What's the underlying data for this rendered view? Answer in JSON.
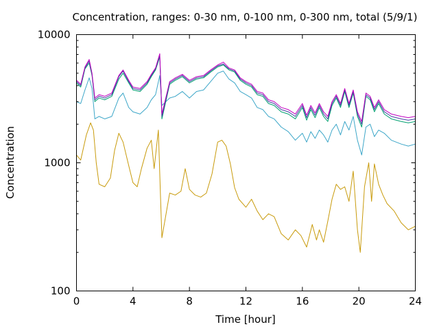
{
  "chart_data": {
    "type": "line",
    "title": "Concentration, ranges: 0-30 nm, 0-100 nm, 0-300 nm, total (5/9/1)",
    "xlabel": "Time [hour]",
    "ylabel": "Concentration",
    "xlim": [
      0,
      24
    ],
    "ylim": [
      100,
      10000
    ],
    "yscale": "log",
    "grid": false,
    "legend": "none",
    "x_ticks": [
      0,
      4,
      8,
      12,
      16,
      20,
      24
    ],
    "y_ticks": [
      100,
      1000,
      10000
    ],
    "x_tick_labels": [
      "0",
      "4",
      "8",
      "12",
      "16",
      "20",
      "24"
    ],
    "y_tick_labels": [
      "100",
      "1000",
      "10000"
    ],
    "series": [
      {
        "color": "#c89a0a",
        "x": [
          0,
          0.3,
          0.7,
          1.0,
          1.2,
          1.4,
          1.6,
          2.0,
          2.4,
          2.7,
          3.0,
          3.3,
          3.7,
          4.0,
          4.3,
          4.6,
          5.0,
          5.3,
          5.5,
          5.8,
          5.95,
          6.05,
          6.6,
          7.0,
          7.4,
          7.7,
          8.0,
          8.4,
          8.8,
          9.2,
          9.6,
          10.0,
          10.3,
          10.6,
          10.9,
          11.2,
          11.5,
          12.0,
          12.4,
          12.8,
          13.2,
          13.6,
          14.0,
          14.5,
          15.0,
          15.5,
          15.9,
          16.3,
          16.7,
          17.0,
          17.2,
          17.5,
          17.8,
          18.1,
          18.4,
          18.7,
          19.0,
          19.3,
          19.6,
          19.9,
          20.1,
          20.4,
          20.7,
          20.9,
          21.1,
          21.4,
          21.7,
          22.0,
          22.5,
          23.0,
          23.5,
          24.0
        ],
        "y": [
          1150,
          1050,
          1650,
          2050,
          1800,
          1000,
          680,
          650,
          760,
          1250,
          1700,
          1450,
          950,
          700,
          650,
          900,
          1300,
          1500,
          900,
          1800,
          550,
          260,
          580,
          560,
          600,
          900,
          620,
          560,
          540,
          580,
          820,
          1450,
          1500,
          1350,
          980,
          640,
          520,
          450,
          520,
          420,
          360,
          400,
          380,
          280,
          250,
          300,
          270,
          220,
          330,
          250,
          300,
          240,
          350,
          520,
          680,
          620,
          650,
          500,
          860,
          300,
          200,
          650,
          1000,
          500,
          980,
          680,
          560,
          480,
          420,
          340,
          300,
          320
        ]
      },
      {
        "color": "#3ca6c8",
        "x": [
          0,
          0.3,
          0.6,
          0.9,
          1.1,
          1.3,
          1.6,
          2.0,
          2.5,
          3.0,
          3.3,
          3.7,
          4.0,
          4.5,
          5.0,
          5.3,
          5.6,
          5.9,
          6.05,
          6.6,
          7.0,
          7.5,
          8.0,
          8.5,
          9.0,
          9.5,
          10.0,
          10.4,
          10.8,
          11.2,
          11.6,
          12.0,
          12.4,
          12.8,
          13.2,
          13.6,
          14.0,
          14.5,
          15.0,
          15.5,
          16.0,
          16.3,
          16.6,
          16.9,
          17.2,
          17.5,
          17.8,
          18.1,
          18.4,
          18.7,
          19.0,
          19.3,
          19.6,
          19.9,
          20.2,
          20.5,
          20.8,
          21.1,
          21.4,
          21.8,
          22.3,
          23.0,
          23.5,
          24.0
        ],
        "y": [
          3000,
          2900,
          3700,
          4600,
          3800,
          2200,
          2300,
          2200,
          2300,
          3200,
          3500,
          2700,
          2500,
          2400,
          2700,
          3100,
          3400,
          4800,
          2800,
          3200,
          3300,
          3600,
          3200,
          3600,
          3700,
          4300,
          5000,
          5200,
          4500,
          4200,
          3600,
          3400,
          3200,
          2700,
          2600,
          2300,
          2200,
          1900,
          1750,
          1500,
          1700,
          1450,
          1750,
          1550,
          1800,
          1650,
          1450,
          1800,
          2000,
          1650,
          2100,
          1800,
          2300,
          1500,
          1150,
          1900,
          2000,
          1600,
          1800,
          1700,
          1500,
          1400,
          1350,
          1400
        ]
      },
      {
        "color": "#00a070",
        "x": [
          0,
          0.3,
          0.6,
          0.9,
          1.1,
          1.3,
          1.6,
          2.0,
          2.5,
          3.0,
          3.3,
          3.7,
          4.0,
          4.5,
          5.0,
          5.3,
          5.6,
          5.9,
          6.05,
          6.6,
          7.0,
          7.5,
          8.0,
          8.5,
          9.0,
          9.5,
          10.0,
          10.4,
          10.8,
          11.2,
          11.6,
          12.0,
          12.4,
          12.8,
          13.2,
          13.6,
          14.0,
          14.5,
          15.0,
          15.5,
          16.0,
          16.3,
          16.6,
          16.9,
          17.2,
          17.5,
          17.8,
          18.1,
          18.4,
          18.7,
          19.0,
          19.3,
          19.6,
          19.9,
          20.2,
          20.5,
          20.8,
          21.1,
          21.4,
          21.8,
          22.3,
          23.0,
          23.5,
          24.0
        ],
        "y": [
          4200,
          3900,
          5400,
          6000,
          4800,
          3000,
          3200,
          3100,
          3300,
          4500,
          5000,
          4200,
          3700,
          3600,
          4100,
          4700,
          5300,
          6700,
          2200,
          4100,
          4400,
          4700,
          4200,
          4500,
          4600,
          5100,
          5600,
          5800,
          5300,
          5100,
          4400,
          4100,
          3900,
          3400,
          3300,
          2900,
          2800,
          2500,
          2400,
          2200,
          2700,
          2150,
          2600,
          2250,
          2700,
          2300,
          2100,
          2800,
          3200,
          2700,
          3600,
          2700,
          3500,
          2300,
          1900,
          3300,
          3100,
          2500,
          2900,
          2400,
          2200,
          2100,
          2050,
          2100
        ]
      },
      {
        "color": "#4040a0",
        "x": [
          0,
          0.3,
          0.6,
          0.9,
          1.1,
          1.3,
          1.6,
          2.0,
          2.5,
          3.0,
          3.3,
          3.7,
          4.0,
          4.5,
          5.0,
          5.3,
          5.6,
          5.9,
          6.05,
          6.6,
          7.0,
          7.5,
          8.0,
          8.5,
          9.0,
          9.5,
          10.0,
          10.4,
          10.8,
          11.2,
          11.6,
          12.0,
          12.4,
          12.8,
          13.2,
          13.6,
          14.0,
          14.5,
          15.0,
          15.5,
          16.0,
          16.3,
          16.6,
          16.9,
          17.2,
          17.5,
          17.8,
          18.1,
          18.4,
          18.7,
          19.0,
          19.3,
          19.6,
          19.9,
          20.2,
          20.5,
          20.8,
          21.1,
          21.4,
          21.8,
          22.3,
          23.0,
          23.5,
          24.0
        ],
        "y": [
          4300,
          4000,
          5500,
          6200,
          4900,
          3100,
          3300,
          3200,
          3400,
          4700,
          5200,
          4300,
          3800,
          3700,
          4200,
          4800,
          5400,
          6900,
          2300,
          4200,
          4500,
          4800,
          4300,
          4600,
          4700,
          5200,
          5700,
          5900,
          5400,
          5200,
          4500,
          4200,
          4000,
          3500,
          3400,
          3000,
          2900,
          2600,
          2500,
          2300,
          2800,
          2250,
          2700,
          2350,
          2800,
          2400,
          2200,
          2900,
          3300,
          2800,
          3700,
          2800,
          3600,
          2400,
          2000,
          3400,
          3200,
          2600,
          3000,
          2500,
          2300,
          2200,
          2150,
          2200
        ]
      },
      {
        "color": "#c000c0",
        "x": [
          0,
          0.3,
          0.6,
          0.9,
          1.1,
          1.3,
          1.6,
          2.0,
          2.5,
          3.0,
          3.3,
          3.7,
          4.0,
          4.5,
          5.0,
          5.3,
          5.6,
          5.9,
          6.05,
          6.6,
          7.0,
          7.5,
          8.0,
          8.5,
          9.0,
          9.5,
          10.0,
          10.4,
          10.8,
          11.2,
          11.6,
          12.0,
          12.4,
          12.8,
          13.2,
          13.6,
          14.0,
          14.5,
          15.0,
          15.5,
          16.0,
          16.3,
          16.6,
          16.9,
          17.2,
          17.5,
          17.8,
          18.1,
          18.4,
          18.7,
          19.0,
          19.3,
          19.6,
          19.9,
          20.2,
          20.5,
          20.8,
          21.1,
          21.4,
          21.8,
          22.3,
          23.0,
          23.5,
          24.0
        ],
        "y": [
          4400,
          4100,
          5600,
          6400,
          5000,
          3200,
          3400,
          3300,
          3500,
          4800,
          5300,
          4400,
          3900,
          3800,
          4300,
          4900,
          5500,
          7100,
          2400,
          4300,
          4600,
          4900,
          4400,
          4700,
          4800,
          5300,
          5800,
          6100,
          5500,
          5300,
          4600,
          4300,
          4100,
          3600,
          3500,
          3100,
          3000,
          2700,
          2600,
          2400,
          2900,
          2350,
          2800,
          2450,
          2900,
          2500,
          2300,
          3000,
          3400,
          2900,
          3800,
          2900,
          3700,
          2500,
          2100,
          3500,
          3300,
          2700,
          3100,
          2600,
          2400,
          2300,
          2250,
          2300
        ]
      }
    ]
  }
}
